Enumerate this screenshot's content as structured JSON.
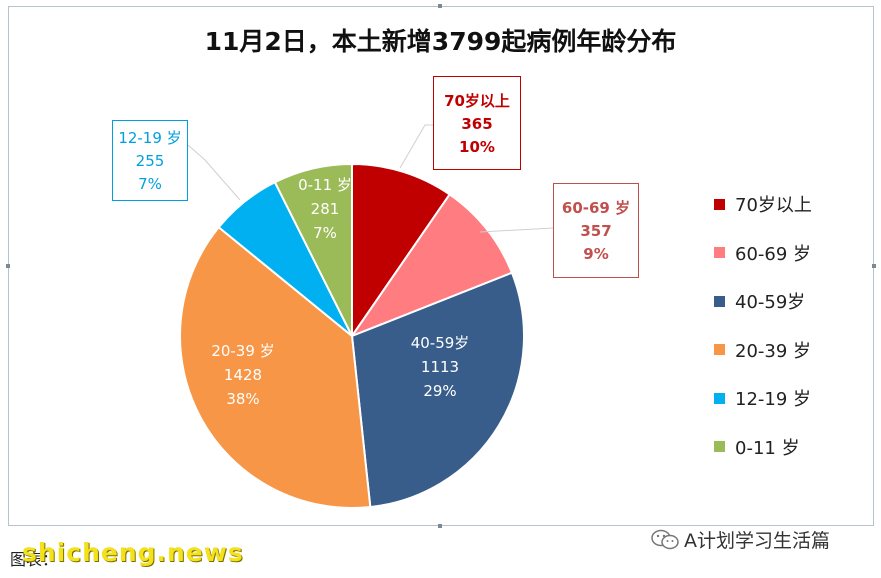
{
  "chart_data": {
    "type": "pie",
    "title": "11月2日，本土新增3799起病例年龄分布",
    "legend_position": "right",
    "slices": [
      {
        "label": "70岁以上",
        "value": 365,
        "percent": "10%",
        "color": "#c00000"
      },
      {
        "label": "60-69 岁",
        "value": 357,
        "percent": "9%",
        "color": "#ff7c80"
      },
      {
        "label": "40-59岁",
        "value": 1113,
        "percent": "29%",
        "color": "#385d8a"
      },
      {
        "label": "20-39 岁",
        "value": 1428,
        "percent": "38%",
        "color": "#f79646"
      },
      {
        "label": "12-19 岁",
        "value": 255,
        "percent": "7%",
        "color": "#00b0f0"
      },
      {
        "label": "0-11 岁",
        "value": 281,
        "percent": "7%",
        "color": "#9bbb59"
      }
    ]
  },
  "legend": [
    "70岁以上",
    "60-69 岁",
    "40-59岁",
    "20-39 岁",
    "12-19 岁",
    "0-11 岁"
  ],
  "footer": {
    "source_label": "图表：",
    "watermark": "shicheng.news",
    "account": "A计划学习生活篇"
  }
}
